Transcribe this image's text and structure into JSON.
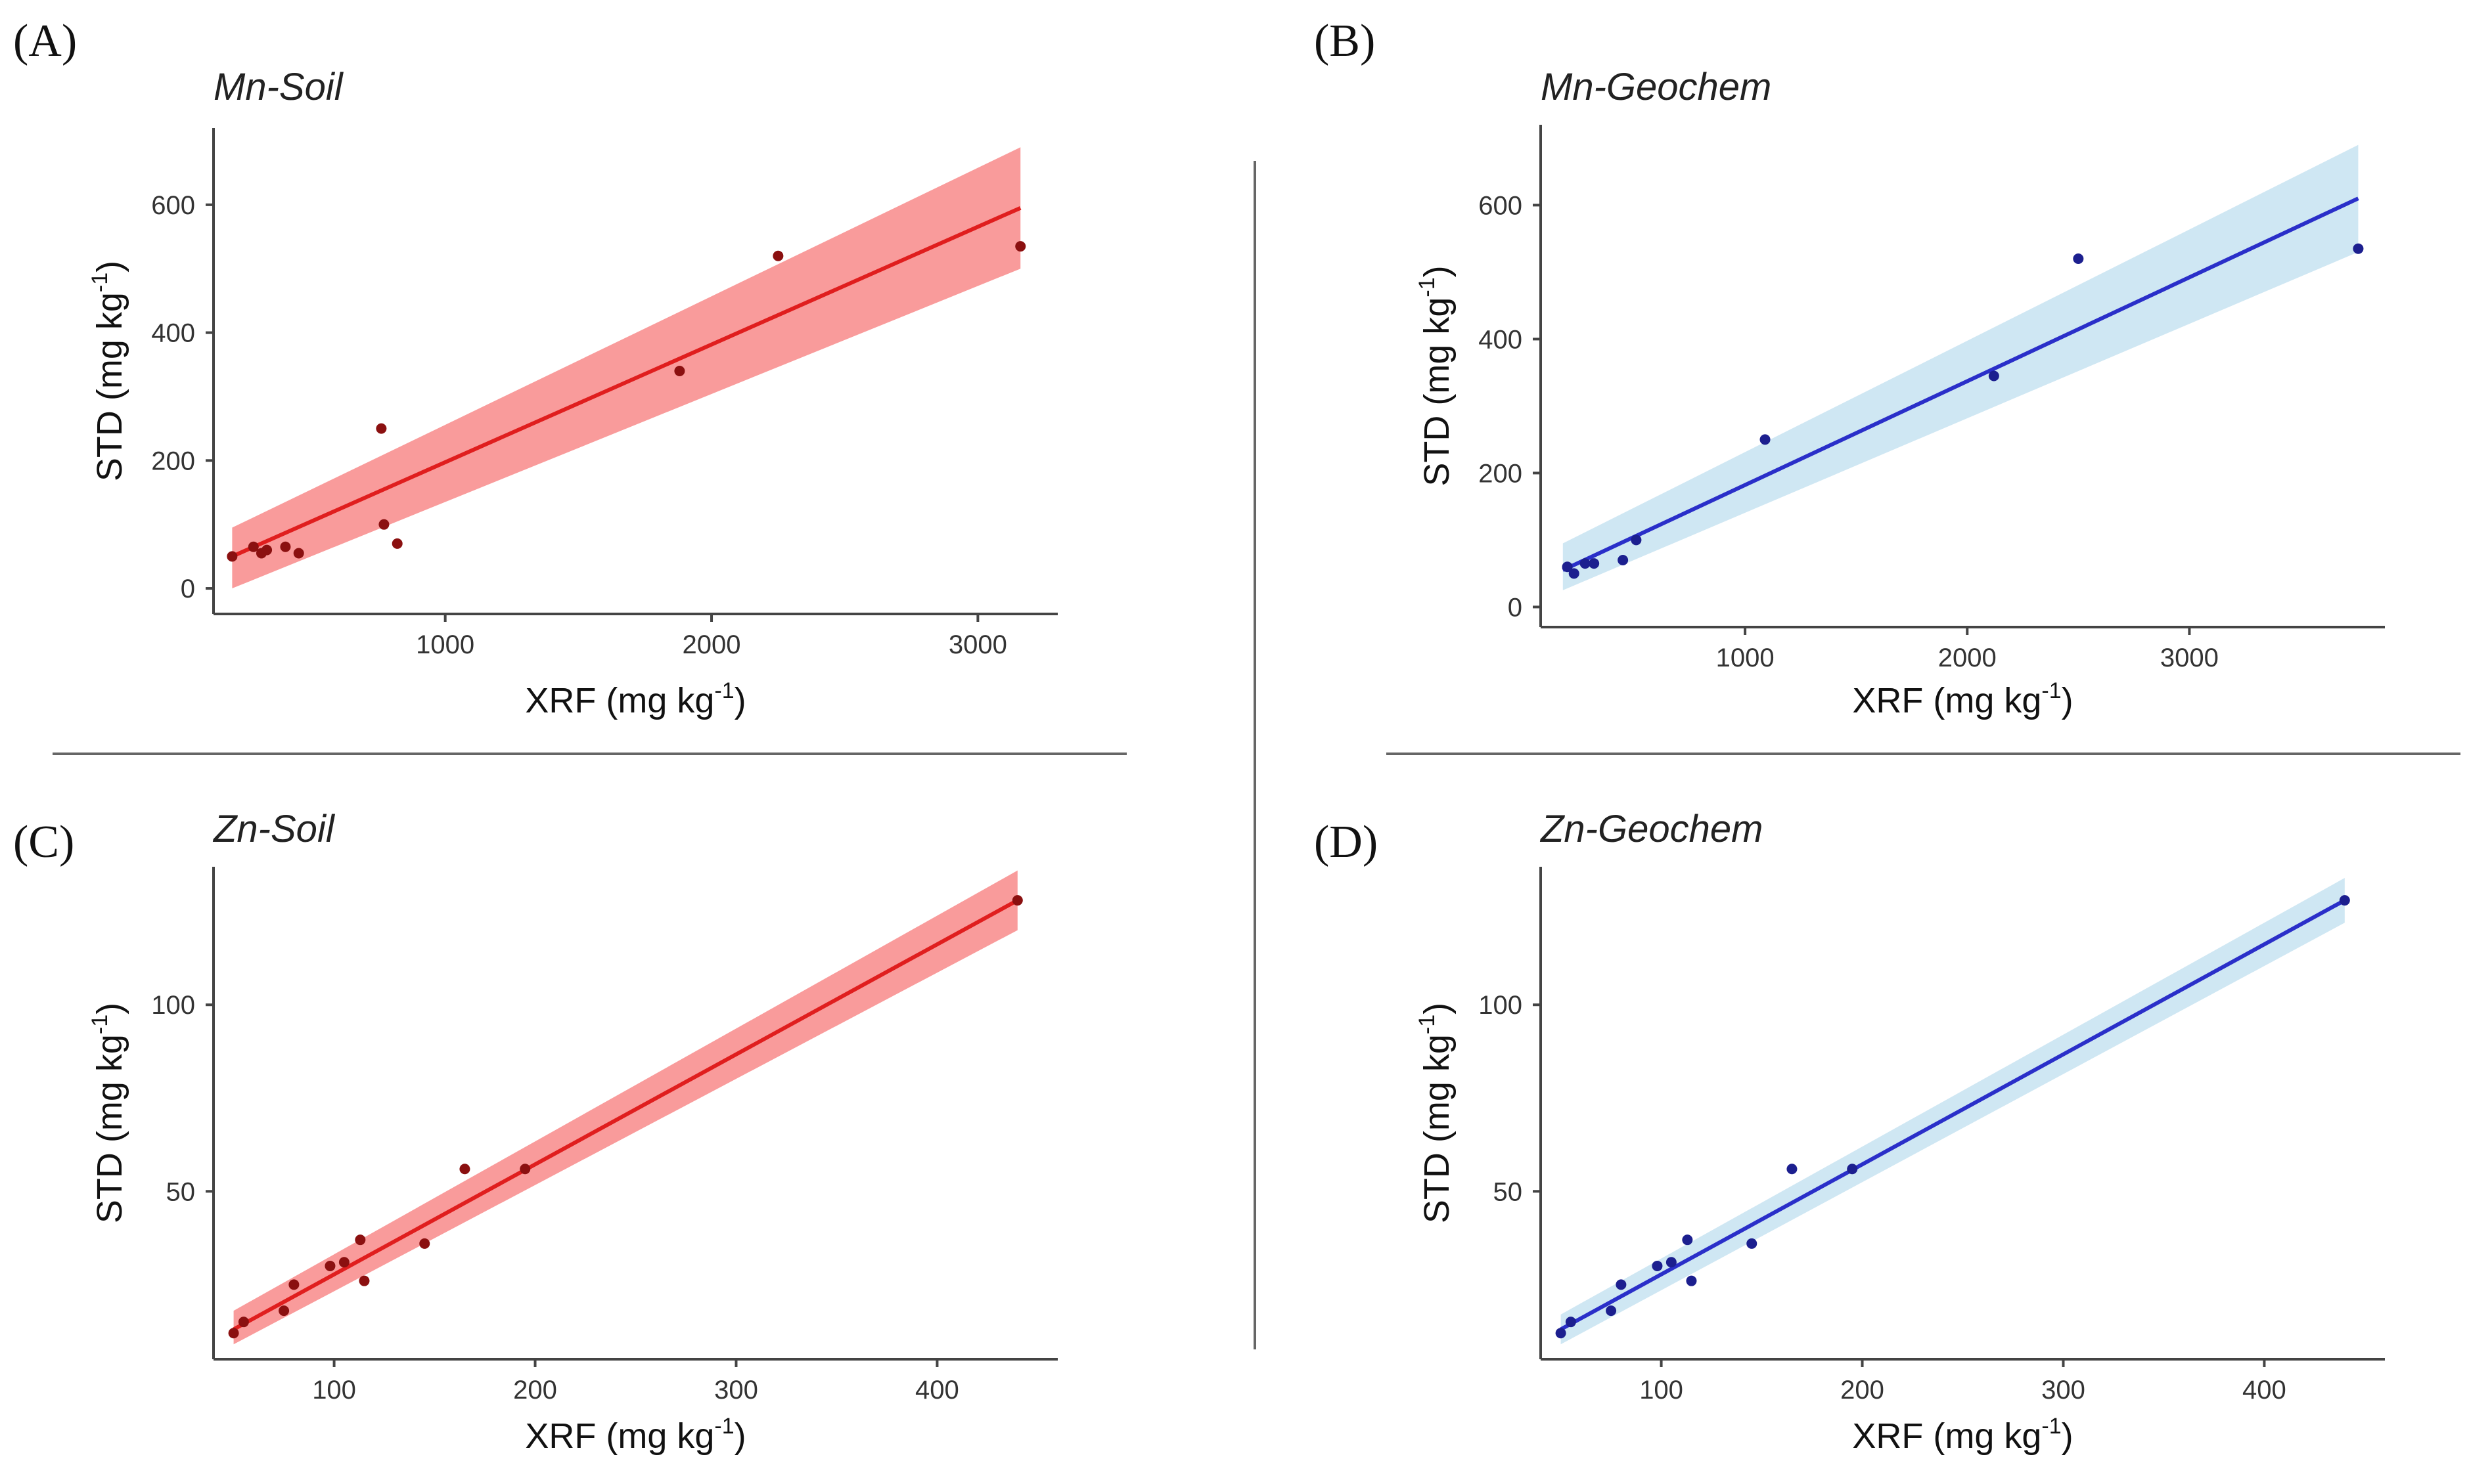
{
  "figure": {
    "accent_colors": {
      "soil_line": "#e01e1e",
      "soil_band": "#f88a8a",
      "soil_point": "#8b1010",
      "geochem_line": "#2a2fc9",
      "geochem_band": "#cfe7f3",
      "geochem_point": "#1c1f8f"
    }
  },
  "chart_data": [
    {
      "panel": "(A)",
      "title": "Mn-Soil",
      "type": "scatter",
      "xlabel": "XRF (mg kg",
      "ylabel": "STD (mg kg",
      "unit_sup": "-1",
      "unit_close": ")",
      "xlim": [
        130,
        3300
      ],
      "ylim": [
        -40,
        720
      ],
      "xticks": [
        1000,
        2000,
        3000
      ],
      "yticks": [
        0,
        200,
        400,
        600
      ],
      "x": [
        200,
        280,
        310,
        330,
        400,
        450,
        760,
        770,
        820,
        1880,
        2250,
        3160
      ],
      "y": [
        50,
        65,
        55,
        60,
        65,
        55,
        250,
        100,
        70,
        340,
        520,
        535
      ],
      "fit": {
        "x": [
          200,
          3160
        ],
        "y": [
          50,
          595
        ],
        "ci_low": [
          0,
          500
        ],
        "ci_high": [
          95,
          690
        ]
      },
      "color": "soil"
    },
    {
      "panel": "(B)",
      "title": "Mn-Geochem",
      "type": "scatter",
      "xlabel": "XRF (mg kg",
      "ylabel": "STD (mg kg",
      "unit_sup": "-1",
      "unit_close": ")",
      "xlim": [
        80,
        3880
      ],
      "ylim": [
        -30,
        720
      ],
      "xticks": [
        1000,
        2000,
        3000
      ],
      "yticks": [
        0,
        200,
        400,
        600
      ],
      "x": [
        200,
        230,
        280,
        320,
        450,
        510,
        1090,
        2120,
        2500,
        3760
      ],
      "y": [
        60,
        50,
        65,
        65,
        70,
        100,
        250,
        345,
        520,
        535
      ],
      "fit": {
        "x": [
          180,
          3760
        ],
        "y": [
          55,
          610
        ],
        "ci_low": [
          25,
          530
        ],
        "ci_high": [
          95,
          690
        ]
      },
      "color": "geochem"
    },
    {
      "panel": "(C)",
      "title": "Zn-Soil",
      "type": "scatter",
      "xlabel": "XRF (mg kg",
      "ylabel": "STD (mg kg",
      "unit_sup": "-1",
      "unit_close": ")",
      "xlim": [
        40,
        460
      ],
      "ylim": [
        5,
        137
      ],
      "xticks": [
        100,
        200,
        300,
        400
      ],
      "yticks": [
        50,
        100
      ],
      "x": [
        50,
        55,
        75,
        80,
        98,
        105,
        113,
        115,
        145,
        165,
        195,
        440
      ],
      "y": [
        12,
        15,
        18,
        25,
        30,
        31,
        37,
        26,
        36,
        56,
        56,
        128
      ],
      "fit": {
        "x": [
          50,
          440
        ],
        "y": [
          13,
          128
        ],
        "ci_low": [
          9,
          120
        ],
        "ci_high": [
          18,
          136
        ]
      },
      "color": "soil"
    },
    {
      "panel": "(D)",
      "title": "Zn-Geochem",
      "type": "scatter",
      "xlabel": "XRF (mg kg",
      "ylabel": "STD (mg kg",
      "unit_sup": "-1",
      "unit_close": ")",
      "xlim": [
        40,
        460
      ],
      "ylim": [
        5,
        137
      ],
      "xticks": [
        100,
        200,
        300,
        400
      ],
      "yticks": [
        50,
        100
      ],
      "x": [
        50,
        55,
        75,
        80,
        98,
        105,
        113,
        115,
        145,
        165,
        195,
        440
      ],
      "y": [
        12,
        15,
        18,
        25,
        30,
        31,
        37,
        26,
        36,
        56,
        56,
        128
      ],
      "fit": {
        "x": [
          50,
          440
        ],
        "y": [
          13,
          128
        ],
        "ci_low": [
          9,
          122
        ],
        "ci_high": [
          17,
          134
        ]
      },
      "color": "geochem"
    }
  ]
}
